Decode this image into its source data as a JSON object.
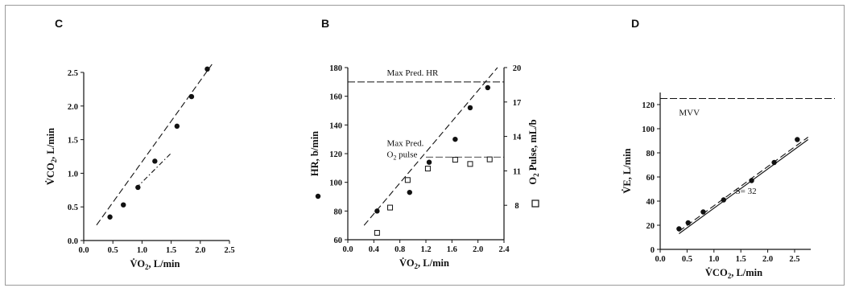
{
  "chart_data": [
    {
      "panel": "C",
      "type": "scatter",
      "xlabel": "V̇O2, L/min",
      "ylabel": "V̇CO2, L/min",
      "xlim": [
        0,
        2.5
      ],
      "ylim": [
        0,
        2.5
      ],
      "xticks": [
        "0.0",
        "0.5",
        "1.0",
        "1.5",
        "2.0",
        "2.5"
      ],
      "yticks": [
        "0.0",
        "0.5",
        "1.0",
        "1.5",
        "2.0",
        "2.5"
      ],
      "series": [
        {
          "values": [
            [
              0.45,
              0.35
            ],
            [
              0.68,
              0.53
            ],
            [
              0.93,
              0.79
            ],
            [
              1.22,
              1.18
            ],
            [
              1.6,
              1.7
            ],
            [
              1.85,
              2.14
            ],
            [
              2.12,
              2.55
            ]
          ]
        }
      ],
      "fit_lines": [
        {
          "style": "dashed",
          "points": [
            [
              0.22,
              0.23
            ],
            [
              2.2,
              2.62
            ]
          ]
        },
        {
          "style": "dash-dot",
          "points": [
            [
              0.9,
              0.78
            ],
            [
              1.5,
              1.3
            ]
          ]
        }
      ]
    },
    {
      "panel": "B",
      "type": "scatter",
      "xlabel": "V̇O2, L/min",
      "ylabel_left": "HR, b/min",
      "ylabel_right": "O2 Pulse, mL/b",
      "xlim": [
        0,
        2.4
      ],
      "ylim_left": [
        60,
        180
      ],
      "ylim_right": [
        5,
        20
      ],
      "xticks": [
        "0.0",
        "0.4",
        "0.8",
        "1.2",
        "1.6",
        "2.0",
        "2.4"
      ],
      "yticks_left": [
        "60",
        "80",
        "100",
        "120",
        "140",
        "160",
        "180"
      ],
      "yticks_right": [
        "8",
        "11",
        "14",
        "17",
        "20"
      ],
      "reference_lines": [
        {
          "label": "Max Pred. HR",
          "axis": "left",
          "value": 170
        },
        {
          "label_lines": [
            "Max Pred.",
            "O2 pulse"
          ],
          "axis": "right",
          "value": 12.2
        }
      ],
      "series": [
        {
          "marker": "filled-circle",
          "axis": "left",
          "values": [
            [
              0.45,
              80
            ],
            [
              0.95,
              93
            ],
            [
              1.25,
              114
            ],
            [
              1.65,
              130
            ],
            [
              1.88,
              152
            ],
            [
              2.15,
              166
            ]
          ]
        },
        {
          "marker": "open-square",
          "axis": "right",
          "values": [
            [
              0.45,
              5.6
            ],
            [
              0.65,
              7.8
            ],
            [
              0.92,
              10.2
            ],
            [
              1.23,
              11.2
            ],
            [
              1.65,
              11.97
            ],
            [
              1.88,
              11.6
            ],
            [
              2.18,
              12.0
            ]
          ]
        }
      ],
      "fit_lines": [
        {
          "axis": "left",
          "style": "dashed",
          "points": [
            [
              0.25,
              70
            ],
            [
              2.3,
              180
            ]
          ]
        }
      ],
      "legend_markers": [
        "filled-circle",
        "open-square"
      ]
    },
    {
      "panel": "D",
      "type": "scatter",
      "xlabel": "V̇CO2, L/min",
      "ylabel": "V̇E, L/min",
      "xlim": [
        0,
        2.8
      ],
      "ylim": [
        0,
        130
      ],
      "xticks": [
        "0.0",
        "0.5",
        "1.0",
        "1.5",
        "2.0",
        "2.5"
      ],
      "yticks": [
        "0",
        "20",
        "40",
        "60",
        "80",
        "100",
        "120"
      ],
      "reference_lines": [
        {
          "label": "MVV",
          "value": 125
        }
      ],
      "annotation": "S= 32",
      "series": [
        {
          "values": [
            [
              0.35,
              17
            ],
            [
              0.52,
              22
            ],
            [
              0.8,
              31
            ],
            [
              1.18,
              41
            ],
            [
              1.7,
              57
            ],
            [
              2.12,
              72
            ],
            [
              2.55,
              91
            ]
          ]
        }
      ],
      "fit_lines": [
        {
          "style": "solid",
          "points": [
            [
              0.35,
              13
            ],
            [
              2.75,
              91
            ]
          ]
        },
        {
          "style": "dashed",
          "points": [
            [
              0.35,
              15
            ],
            [
              2.75,
              93
            ]
          ]
        }
      ]
    }
  ]
}
